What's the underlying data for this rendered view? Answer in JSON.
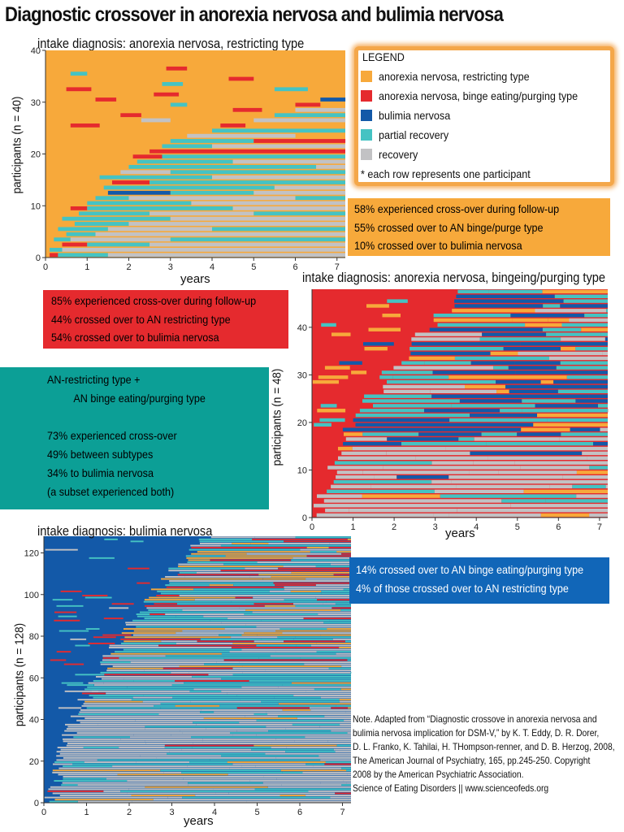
{
  "page": {
    "title": "Diagnostic crossover in anorexia nervosa and bulimia nervosa"
  },
  "colors": {
    "an_restricting": "#f7a93b",
    "an_binge_purge": "#e52a2e",
    "bulimia": "#1359a8",
    "partial_recovery": "#45c3c3",
    "recovery": "#c2c2c4",
    "bn_background": "#175ea8"
  },
  "legend": {
    "title": "LEGEND",
    "items": [
      {
        "label": "anorexia nervosa, restricting type",
        "color": "#f7a93b"
      },
      {
        "label": "anorexia nervosa, binge eating/purging type",
        "color": "#e52a2e"
      },
      {
        "label": "bulimia nervosa",
        "color": "#1359a8"
      },
      {
        "label": "partial recovery",
        "color": "#45c3c3"
      },
      {
        "label": "recovery",
        "color": "#c2c2c4"
      }
    ],
    "note": "* each row represents one participant"
  },
  "boxes": {
    "an_restricting": [
      "58% experienced cross-over during follow-up",
      "55% crossed over to AN binge/purge type",
      "10% crossed over to bulimia nervosa"
    ],
    "an_binge_purge": [
      "85% experienced cross-over during follow-up",
      "44% crossed over to AN restricting type",
      "54% crossed over to bulimia nervosa"
    ],
    "combined": [
      "AN-restricting type +",
      "AN binge eating/purging type",
      "",
      "73% experienced cross-over",
      "49% between subtypes",
      "34% to bulimia nervosa",
      "(a subset experienced both)"
    ],
    "bulimia": [
      "14% crossed over to AN binge eating/purging type",
      "4% of those crossed over to AN restricting type"
    ]
  },
  "note": {
    "lines": [
      "Note. Adapted from “Diagnostic crossove in anorexia nervosa and",
      "bulimia nervosa implication for DSM-V,” by K. T. Eddy, D. R. Dorer,",
      " D. L. Franko, K. Tahilai, H. THompson-renner, and D. B. Herzog, 2008,",
      "The American Journal of Psychiatry, 165, pp.245-250. Copyright",
      "2008 by the American Psychiatric Association.",
      "Science of Eating Disorders || www.scienceofeds.org"
    ]
  },
  "chart_data": [
    {
      "type": "heatmap",
      "title": "intake diagnosis: anorexia nervosa, restricting type",
      "xlabel": "years",
      "ylabel": "participants (n = 40)",
      "xlim": [
        0,
        7.2
      ],
      "ylim": [
        0,
        40
      ],
      "x_ticks": [
        "0",
        "1",
        "2",
        "3",
        "4",
        "5",
        "6",
        "7"
      ],
      "y_ticks": [
        "0",
        "10",
        "20",
        "30",
        "40"
      ],
      "n_rows": 40,
      "baseline_state": "an_restricting",
      "rows": [
        [
          [
            0.1,
            0.3,
            "an_binge_purge"
          ],
          [
            0.3,
            1.5,
            "partial_recovery"
          ],
          [
            1.5,
            7.2,
            "recovery"
          ]
        ],
        [
          [
            0.1,
            0.4,
            "partial_recovery"
          ],
          [
            0.4,
            7.2,
            "recovery"
          ]
        ],
        [
          [
            0.4,
            1.0,
            "an_binge_purge"
          ],
          [
            1.0,
            2.5,
            "partial_recovery"
          ],
          [
            2.5,
            7.2,
            "recovery"
          ]
        ],
        [
          [
            0.2,
            0.6,
            "partial_recovery"
          ],
          [
            0.6,
            3.0,
            "recovery"
          ],
          [
            3.0,
            7.2,
            "partial_recovery"
          ]
        ],
        [
          [
            0.5,
            1.2,
            "partial_recovery"
          ],
          [
            1.2,
            7.2,
            "recovery"
          ]
        ],
        [
          [
            0.3,
            1.5,
            "partial_recovery"
          ],
          [
            1.5,
            4.0,
            "recovery"
          ],
          [
            4.0,
            7.2,
            "partial_recovery"
          ]
        ],
        [
          [
            0.7,
            2.0,
            "partial_recovery"
          ],
          [
            2.0,
            7.2,
            "recovery"
          ]
        ],
        [
          [
            0.4,
            3.0,
            "partial_recovery"
          ],
          [
            3.0,
            7.2,
            "recovery"
          ]
        ],
        [
          [
            0.8,
            2.5,
            "partial_recovery"
          ],
          [
            2.5,
            5.0,
            "recovery"
          ],
          [
            5.0,
            7.2,
            "partial_recovery"
          ]
        ],
        [
          [
            0.6,
            1.0,
            "an_binge_purge"
          ],
          [
            1.0,
            4.5,
            "partial_recovery"
          ],
          [
            4.5,
            7.2,
            "recovery"
          ]
        ],
        [
          [
            1.0,
            3.5,
            "partial_recovery"
          ],
          [
            3.5,
            7.2,
            "recovery"
          ]
        ],
        [
          [
            1.2,
            2.0,
            "partial_recovery"
          ],
          [
            2.0,
            6.0,
            "recovery"
          ],
          [
            6.0,
            7.2,
            "partial_recovery"
          ]
        ],
        [
          [
            1.5,
            3.0,
            "bulimia"
          ],
          [
            3.0,
            5.0,
            "partial_recovery"
          ],
          [
            5.0,
            7.2,
            "recovery"
          ]
        ],
        [
          [
            1.4,
            5.5,
            "partial_recovery"
          ],
          [
            5.5,
            7.2,
            "recovery"
          ]
        ],
        [
          [
            1.6,
            2.5,
            "an_binge_purge"
          ],
          [
            2.5,
            7.2,
            "partial_recovery"
          ]
        ],
        [
          [
            1.3,
            4.0,
            "partial_recovery"
          ],
          [
            4.0,
            7.2,
            "recovery"
          ]
        ],
        [
          [
            1.8,
            3.0,
            "recovery"
          ],
          [
            3.0,
            7.2,
            "partial_recovery"
          ]
        ],
        [
          [
            2.0,
            6.5,
            "partial_recovery"
          ],
          [
            6.5,
            7.2,
            "recovery"
          ]
        ],
        [
          [
            2.2,
            4.5,
            "partial_recovery"
          ],
          [
            4.5,
            7.2,
            "recovery"
          ]
        ],
        [
          [
            2.1,
            2.8,
            "an_binge_purge"
          ],
          [
            2.8,
            7.2,
            "partial_recovery"
          ]
        ],
        [
          [
            2.5,
            7.2,
            "an_binge_purge"
          ]
        ],
        [
          [
            2.8,
            4.0,
            "partial_recovery"
          ],
          [
            4.0,
            7.2,
            "recovery"
          ]
        ],
        [
          [
            3.0,
            5.0,
            "partial_recovery"
          ],
          [
            5.0,
            7.2,
            "an_binge_purge"
          ]
        ],
        [
          [
            3.4,
            6.0,
            "recovery"
          ]
        ],
        [
          [
            4.0,
            7.2,
            "partial_recovery"
          ]
        ],
        [
          [
            0.6,
            1.3,
            "an_binge_purge"
          ],
          [
            4.2,
            4.8,
            "an_binge_purge"
          ]
        ],
        [
          [
            2.3,
            3.0,
            "recovery"
          ],
          [
            5.0,
            7.2,
            "recovery"
          ]
        ],
        [
          [
            1.8,
            2.3,
            "an_binge_purge"
          ],
          [
            5.5,
            7.2,
            "partial_recovery"
          ]
        ],
        [
          [
            4.5,
            5.2,
            "an_binge_purge"
          ],
          [
            6.0,
            7.2,
            "recovery"
          ]
        ],
        [
          [
            3.0,
            3.4,
            "partial_recovery"
          ],
          [
            6.0,
            6.6,
            "an_binge_purge"
          ]
        ],
        [
          [
            1.2,
            1.7,
            "an_binge_purge"
          ],
          [
            6.6,
            7.2,
            "bulimia"
          ]
        ],
        [
          [
            2.6,
            3.2,
            "an_binge_purge"
          ]
        ],
        [
          [
            0.5,
            1.1,
            "an_binge_purge"
          ],
          [
            5.5,
            6.3,
            "partial_recovery"
          ]
        ],
        [
          [
            2.8,
            3.3,
            "partial_recovery"
          ]
        ],
        [
          [
            4.4,
            5.0,
            "an_binge_purge"
          ]
        ],
        [
          [
            0.6,
            1.0,
            "partial_recovery"
          ]
        ],
        [
          [
            2.9,
            3.4,
            "an_binge_purge"
          ]
        ],
        [
          [],
          []
        ],
        [],
        []
      ]
    },
    {
      "type": "heatmap",
      "title": "intake diagnosis: anorexia nervosa, bingeing/purging type",
      "xlabel": "years",
      "ylabel": "participants (n = 48)",
      "xlim": [
        0,
        7.2
      ],
      "ylim": [
        0,
        48
      ],
      "x_ticks": [
        "0",
        "1",
        "2",
        "3",
        "4",
        "5",
        "6",
        "7"
      ],
      "y_ticks": [
        "0",
        "10",
        "20",
        "30",
        "40"
      ],
      "n_rows": 48,
      "baseline_state": "an_binge_purge"
    },
    {
      "type": "heatmap",
      "title": "intake diagnosis: bulimia nervosa",
      "xlabel": "years",
      "ylabel": "participants (n = 128)",
      "xlim": [
        0,
        7.2
      ],
      "ylim": [
        0,
        128
      ],
      "x_ticks": [
        "0",
        "1",
        "2",
        "3",
        "4",
        "5",
        "6",
        "7"
      ],
      "y_ticks": [
        "0",
        "20",
        "40",
        "60",
        "80",
        "100",
        "120"
      ],
      "n_rows": 128,
      "baseline_state": "bulimia"
    }
  ]
}
